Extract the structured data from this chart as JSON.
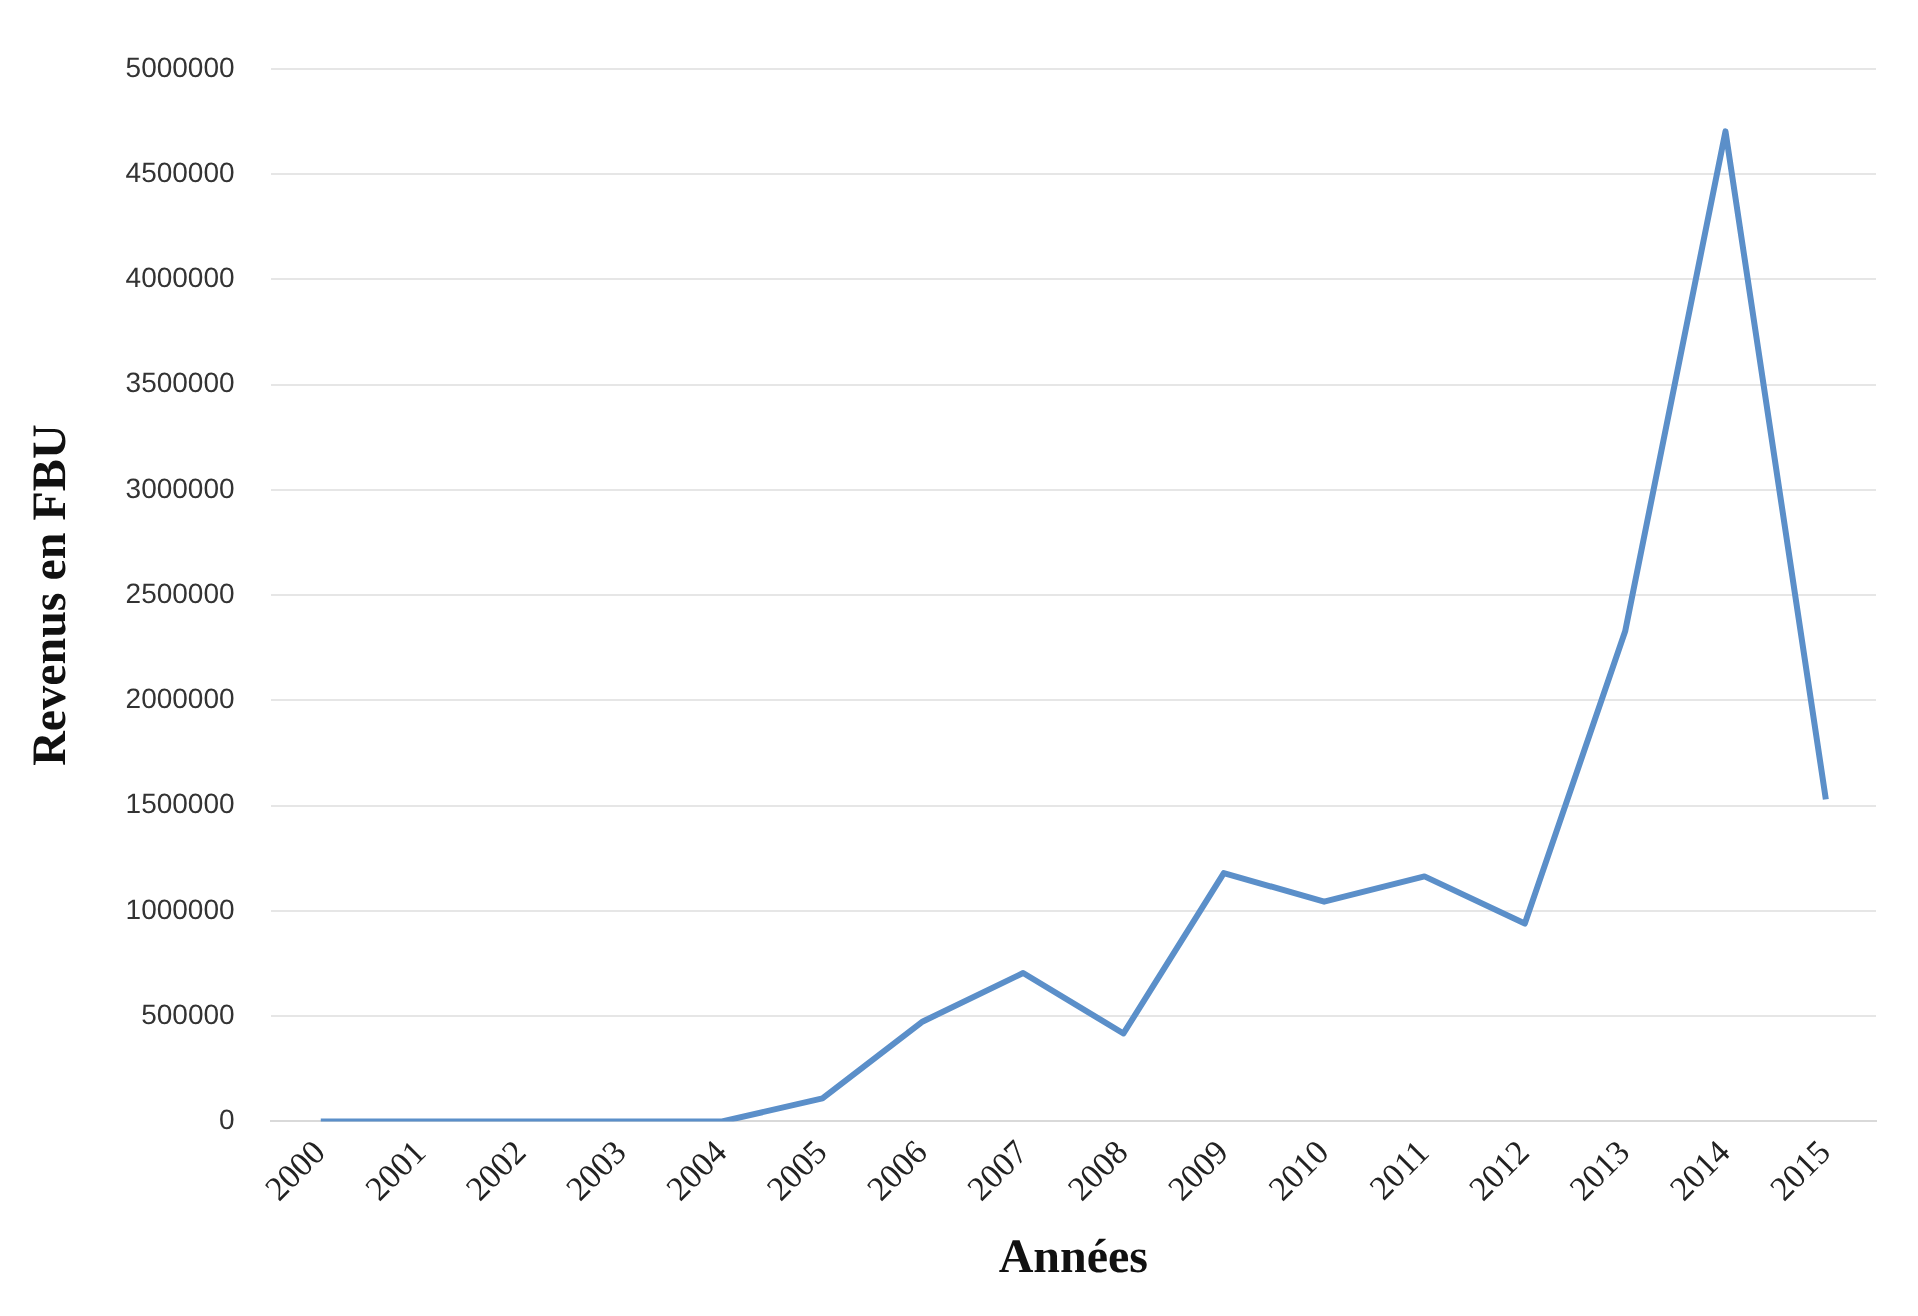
{
  "chart_data": {
    "type": "line",
    "xlabel": "Années",
    "ylabel": "Revenus en FBU",
    "categories": [
      "2000",
      "2001",
      "2002",
      "2003",
      "2004",
      "2005",
      "2006",
      "2007",
      "2008",
      "2009",
      "2010",
      "2011",
      "2012",
      "2013",
      "2014",
      "2015"
    ],
    "series": [
      {
        "color": "#5b8fc9",
        "values": [
          0,
          0,
          0,
          0,
          0,
          110000,
          475000,
          705000,
          418000,
          1180000,
          1044000,
          1164000,
          940000,
          2328000,
          4703000,
          1530000
        ]
      }
    ],
    "ylim": [
      0,
      5000000
    ],
    "yticks": [
      0,
      500000,
      1000000,
      1500000,
      2000000,
      2500000,
      3000000,
      3500000,
      4000000,
      4500000,
      5000000
    ],
    "grid": "y",
    "legend": false,
    "marker": "none",
    "line_style": "solid"
  }
}
